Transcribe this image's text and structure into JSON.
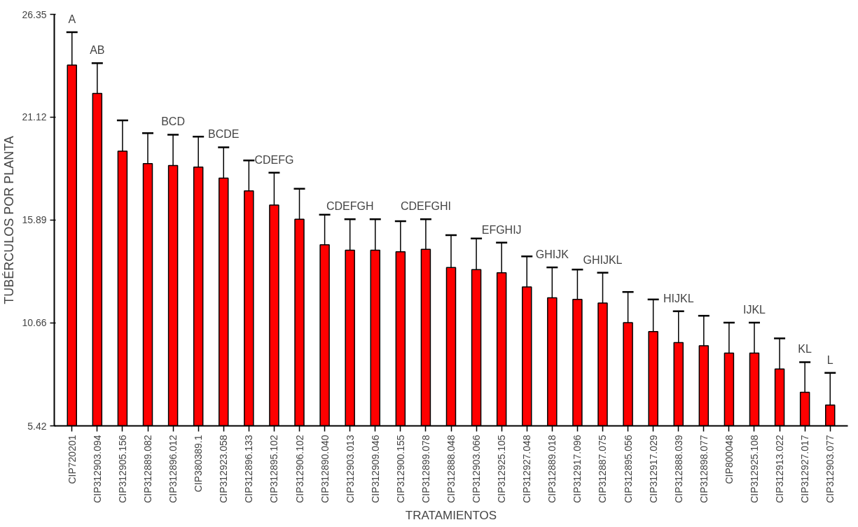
{
  "chart_data": {
    "type": "bar",
    "xlabel": "TRATAMIENTOS",
    "ylabel": "TUBÉRCULOS POR PLANTA",
    "categories": [
      "CIP720201",
      "CIP312903.094",
      "CIP312905.156",
      "CIP312889.082",
      "CIP312896.012",
      "CIP380389.1",
      "CIP312923.058",
      "CIP312896.133",
      "CIP312895.102",
      "CIP312906.102",
      "CIP312890.040",
      "CIP312903.013",
      "CIP312909.046",
      "CIP312900.155",
      "CIP312899.078",
      "CIP312888.048",
      "CIP312903.066",
      "CIP312925.105",
      "CIP312927.048",
      "CIP312889.018",
      "CIP312917.096",
      "CIP312887.075",
      "CIP312895.056",
      "CIP312917.029",
      "CIP312888.039",
      "CIP312898.077",
      "CIP800048",
      "CIP312925.108",
      "CIP312913.022",
      "CIP312927.017",
      "CIP312903.077"
    ],
    "values": [
      23.77,
      22.33,
      19.39,
      18.76,
      18.66,
      18.58,
      18.02,
      17.37,
      16.65,
      15.93,
      14.63,
      14.35,
      14.35,
      14.27,
      14.4,
      13.47,
      13.37,
      13.21,
      12.49,
      11.93,
      11.85,
      11.67,
      10.67,
      10.22,
      9.66,
      9.5,
      9.12,
      9.12,
      8.31,
      7.13,
      6.48
    ],
    "errors": [
      [
        23.77,
        25.44
      ],
      [
        22.33,
        23.87
      ],
      [
        19.39,
        20.96
      ],
      [
        18.76,
        20.31
      ],
      [
        18.66,
        20.23
      ],
      [
        18.58,
        20.13
      ],
      [
        18.02,
        19.59
      ],
      [
        17.37,
        18.92
      ],
      [
        16.65,
        18.3
      ],
      [
        15.93,
        17.48
      ],
      [
        14.63,
        16.16
      ],
      [
        14.35,
        15.93
      ],
      [
        14.35,
        15.93
      ],
      [
        14.27,
        15.83
      ],
      [
        14.4,
        15.93
      ],
      [
        13.47,
        15.12
      ],
      [
        13.37,
        14.95
      ],
      [
        13.21,
        14.74
      ],
      [
        12.49,
        14.04
      ],
      [
        11.93,
        13.48
      ],
      [
        11.85,
        13.37
      ],
      [
        11.67,
        13.21
      ],
      [
        10.67,
        12.23
      ],
      [
        10.22,
        11.85
      ],
      [
        9.66,
        11.25
      ],
      [
        9.5,
        11.02
      ],
      [
        9.12,
        10.67
      ],
      [
        9.12,
        10.67
      ],
      [
        8.31,
        9.87
      ],
      [
        7.13,
        8.66
      ],
      [
        6.48,
        8.12
      ]
    ],
    "color": "#ff0000",
    "ylim": [
      5.42,
      26.35
    ],
    "yticks": [
      5.42,
      10.66,
      15.89,
      21.12,
      26.35
    ],
    "grid": false,
    "annotations": [
      {
        "text": "A",
        "x": "CIP720201",
        "y": 25.44
      },
      {
        "text": "AB",
        "x": "CIP312903.094",
        "y": 23.87
      },
      {
        "text": "BCD",
        "x": "CIP312896.012",
        "y": 20.23
      },
      {
        "text": "BCDE",
        "x": "CIP312923.058",
        "y": 19.59
      },
      {
        "text": "CDEFG",
        "x": "CIP312895.102",
        "y": 18.3
      },
      {
        "text": "CDEFGH",
        "x": "CIP312903.013",
        "y": 15.93
      },
      {
        "text": "CDEFGHI",
        "x": "CIP312899.078",
        "y": 15.93
      },
      {
        "text": "EFGHIJ",
        "x": "CIP312925.105",
        "y": 14.74
      },
      {
        "text": "GHIJK",
        "x": "CIP312889.018",
        "y": 13.48
      },
      {
        "text": "GHIJKL",
        "x": "CIP312887.075",
        "y": 13.21
      },
      {
        "text": "HIJKL",
        "x": "CIP312888.039",
        "y": 11.25
      },
      {
        "text": "IJKL",
        "x": "CIP312925.108",
        "y": 10.67
      },
      {
        "text": "KL",
        "x": "CIP312927.017",
        "y": 8.66
      },
      {
        "text": "L",
        "x": "CIP312903.077",
        "y": 8.12
      }
    ]
  }
}
